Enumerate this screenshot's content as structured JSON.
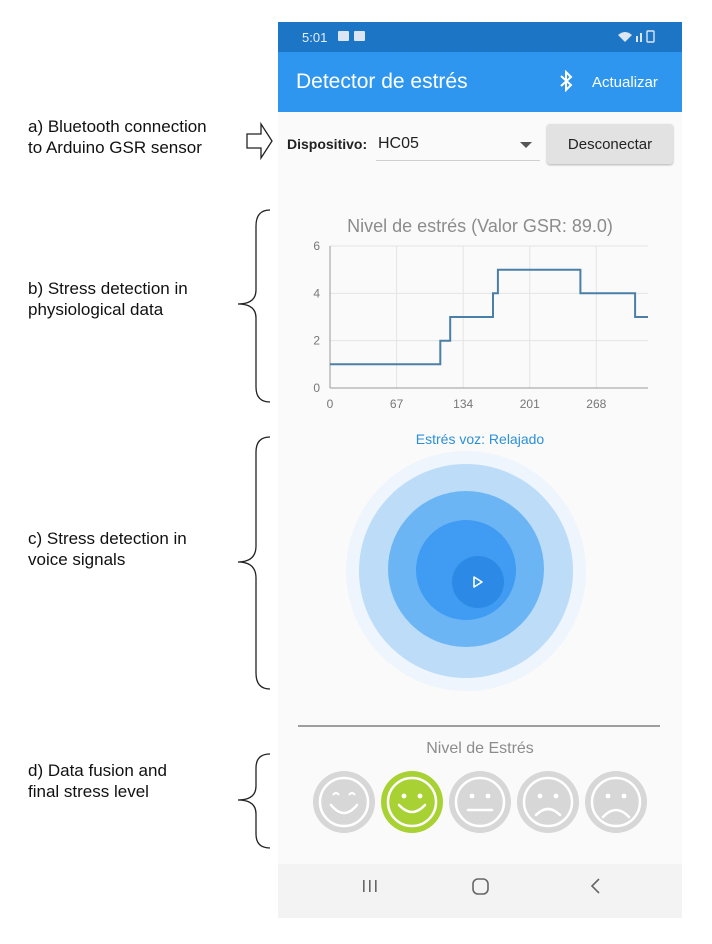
{
  "annotations": {
    "a": "a) Bluetooth connection\nto Arduino GSR sensor",
    "b": "b) Stress detection in\nphysiological data",
    "c": "c) Stress detection in\nvoice signals",
    "d": "d) Data fusion and\nfinal stress level"
  },
  "status_bar": {
    "time": "5:01"
  },
  "app_bar": {
    "title": "Detector de estrés",
    "refresh_label": "Actualizar"
  },
  "device": {
    "label": "Dispositivo:",
    "selected": "HC05",
    "disconnect_label": "Desconectar"
  },
  "chart_data": {
    "type": "line",
    "title": "Nivel de estrés (Valor GSR: 89.0)",
    "xlabel": "",
    "ylabel": "",
    "xlim": [
      0,
      320
    ],
    "ylim": [
      0,
      6
    ],
    "x_ticks": [
      0,
      67,
      134,
      201,
      268
    ],
    "y_ticks": [
      0,
      2,
      4,
      6
    ],
    "grid": true,
    "step": true,
    "series": [
      {
        "color": "#4a7fa8",
        "points": [
          [
            0,
            1
          ],
          [
            111,
            1
          ],
          [
            111,
            2
          ],
          [
            121,
            2
          ],
          [
            121,
            3
          ],
          [
            164,
            3
          ],
          [
            164,
            4
          ],
          [
            169,
            4
          ],
          [
            169,
            5
          ],
          [
            252,
            5
          ],
          [
            252,
            4
          ],
          [
            307,
            4
          ],
          [
            307,
            3
          ],
          [
            320,
            3
          ]
        ]
      }
    ]
  },
  "voice": {
    "label": "Estrés voz: Relajado"
  },
  "stress_level": {
    "label": "Nivel de Estrés",
    "active_index": 1,
    "active_color": "#a8d233",
    "inactive_color": "#d7d7d7",
    "faces": [
      "very-happy",
      "happy",
      "neutral",
      "sad",
      "very-sad"
    ]
  },
  "nav": {
    "items": [
      "recent-apps",
      "home",
      "back"
    ]
  },
  "colors": {
    "app_bar": "#2e96ee",
    "status_bar": "#1c76c5"
  }
}
